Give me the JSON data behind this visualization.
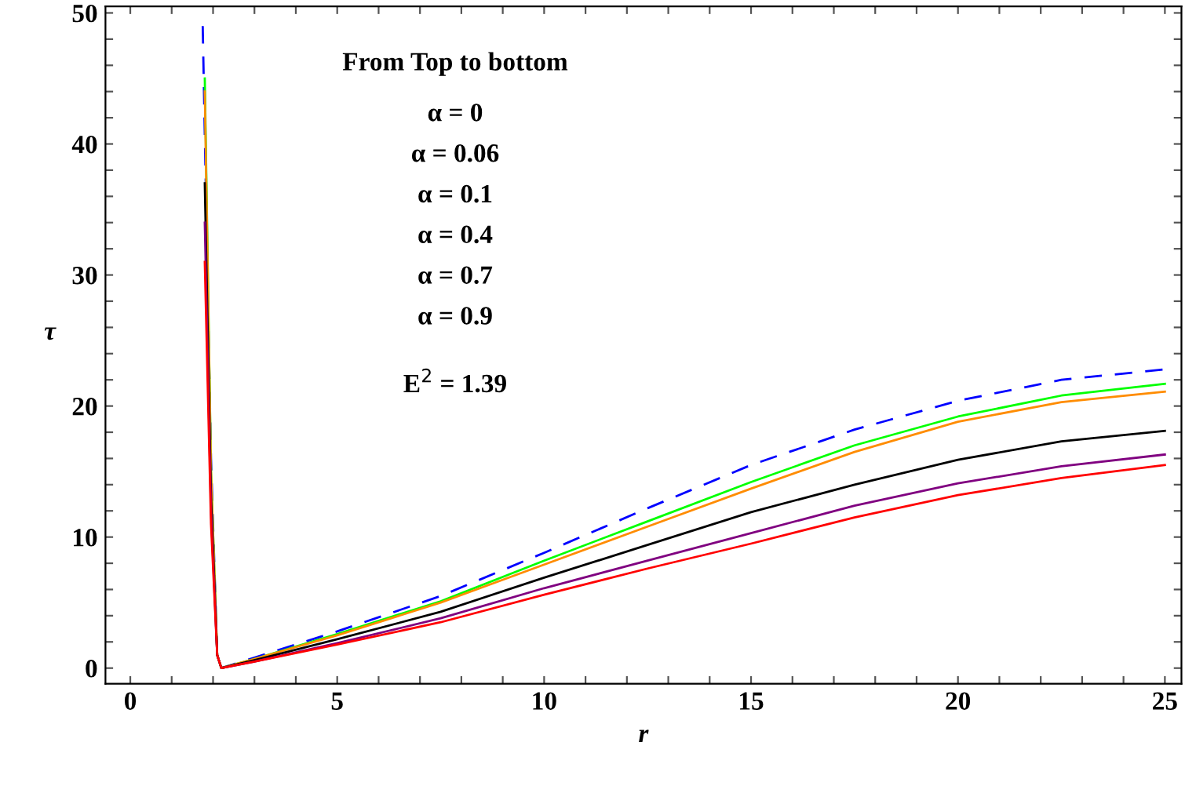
{
  "chart_data": {
    "type": "line",
    "xlabel": "r",
    "ylabel": "τ",
    "xlim": [
      -0.6,
      25.4
    ],
    "ylim": [
      -1.2,
      50.5
    ],
    "xticks": [
      0,
      {
        "value": 1,
        "label": null
      },
      {
        "value": 2,
        "label": null
      },
      {
        "value": 3,
        "label": null
      },
      {
        "value": 4,
        "label": null
      },
      5,
      {
        "value": 6,
        "label": null
      },
      {
        "value": 7,
        "label": null
      },
      {
        "value": 8,
        "label": null
      },
      {
        "value": 9,
        "label": null
      },
      10,
      {
        "value": 11,
        "label": null
      },
      {
        "value": 12,
        "label": null
      },
      {
        "value": 13,
        "label": null
      },
      {
        "value": 14,
        "label": null
      },
      15,
      {
        "value": 16,
        "label": null
      },
      {
        "value": 17,
        "label": null
      },
      {
        "value": 18,
        "label": null
      },
      {
        "value": 19,
        "label": null
      },
      20,
      {
        "value": 21,
        "label": null
      },
      {
        "value": 22,
        "label": null
      },
      {
        "value": 23,
        "label": null
      },
      {
        "value": 24,
        "label": null
      },
      25
    ],
    "yticks": [
      0,
      {
        "value": 2,
        "label": null
      },
      {
        "value": 4,
        "label": null
      },
      {
        "value": 6,
        "label": null
      },
      {
        "value": 8,
        "label": null
      },
      10,
      {
        "value": 12,
        "label": null
      },
      {
        "value": 14,
        "label": null
      },
      {
        "value": 16,
        "label": null
      },
      {
        "value": 18,
        "label": null
      },
      20,
      {
        "value": 22,
        "label": null
      },
      {
        "value": 24,
        "label": null
      },
      {
        "value": 26,
        "label": null
      },
      {
        "value": 28,
        "label": null
      },
      30,
      {
        "value": 32,
        "label": null
      },
      {
        "value": 34,
        "label": null
      },
      {
        "value": 36,
        "label": null
      },
      {
        "value": 38,
        "label": null
      },
      40,
      {
        "value": 42,
        "label": null
      },
      {
        "value": 44,
        "label": null
      },
      {
        "value": 46,
        "label": null
      },
      {
        "value": 48,
        "label": null
      },
      50
    ],
    "grid": false,
    "legend": false,
    "marker": "none",
    "annotations": [
      "From Top to bottom",
      "α = 0",
      "α = 0.06",
      "α = 0.1",
      "α = 0.4",
      "α = 0.7",
      "α = 0.9",
      "E$^{2}$ = 1.39"
    ],
    "series": [
      {
        "color": "#0000ff",
        "line_style": "dashed",
        "x": [
          1.75,
          1.95,
          2.1,
          2.2,
          3,
          5,
          7.5,
          10,
          12.5,
          15,
          17.5,
          20,
          22.5,
          25
        ],
        "values": [
          49,
          16,
          1,
          0,
          0.8,
          2.8,
          5.5,
          8.8,
          12.2,
          15.5,
          18.2,
          20.4,
          22.0,
          22.8
        ]
      },
      {
        "color": "#00ff00",
        "line_style": "solid",
        "x": [
          1.8,
          1.95,
          2.1,
          2.2,
          3,
          5,
          7.5,
          10,
          12.5,
          15,
          17.5,
          20,
          22.5,
          25
        ],
        "values": [
          45,
          15,
          1,
          0,
          0.7,
          2.6,
          5.1,
          8.2,
          11.2,
          14.2,
          17.0,
          19.2,
          20.8,
          21.7
        ]
      },
      {
        "color": "#ff8c00",
        "line_style": "solid",
        "x": [
          1.8,
          1.95,
          2.1,
          2.2,
          3,
          5,
          7.5,
          10,
          12.5,
          15,
          17.5,
          20,
          22.5,
          25
        ],
        "values": [
          44,
          15,
          1,
          0,
          0.7,
          2.5,
          5.0,
          7.9,
          10.8,
          13.7,
          16.5,
          18.8,
          20.3,
          21.1
        ]
      },
      {
        "color": "#000000",
        "line_style": "solid",
        "x": [
          1.8,
          1.95,
          2.1,
          2.2,
          3,
          5,
          7.5,
          10,
          12.5,
          15,
          17.5,
          20,
          22.5,
          25
        ],
        "values": [
          37,
          13,
          1,
          0,
          0.6,
          2.2,
          4.3,
          6.9,
          9.4,
          11.9,
          14.0,
          15.9,
          17.3,
          18.1
        ]
      },
      {
        "color": "#800080",
        "line_style": "solid",
        "x": [
          1.8,
          1.95,
          2.1,
          2.2,
          3,
          5,
          7.5,
          10,
          12.5,
          15,
          17.5,
          20,
          22.5,
          25
        ],
        "values": [
          34,
          12,
          1,
          0,
          0.5,
          1.9,
          3.8,
          6.1,
          8.2,
          10.3,
          12.4,
          14.1,
          15.4,
          16.3
        ]
      },
      {
        "color": "#ff0000",
        "line_style": "solid",
        "x": [
          1.8,
          1.95,
          2.1,
          2.2,
          3,
          5,
          7.5,
          10,
          12.5,
          15,
          17.5,
          20,
          22.5,
          25
        ],
        "values": [
          31,
          11,
          1,
          0,
          0.5,
          1.8,
          3.5,
          5.6,
          7.6,
          9.5,
          11.5,
          13.2,
          14.5,
          15.5
        ]
      }
    ]
  }
}
